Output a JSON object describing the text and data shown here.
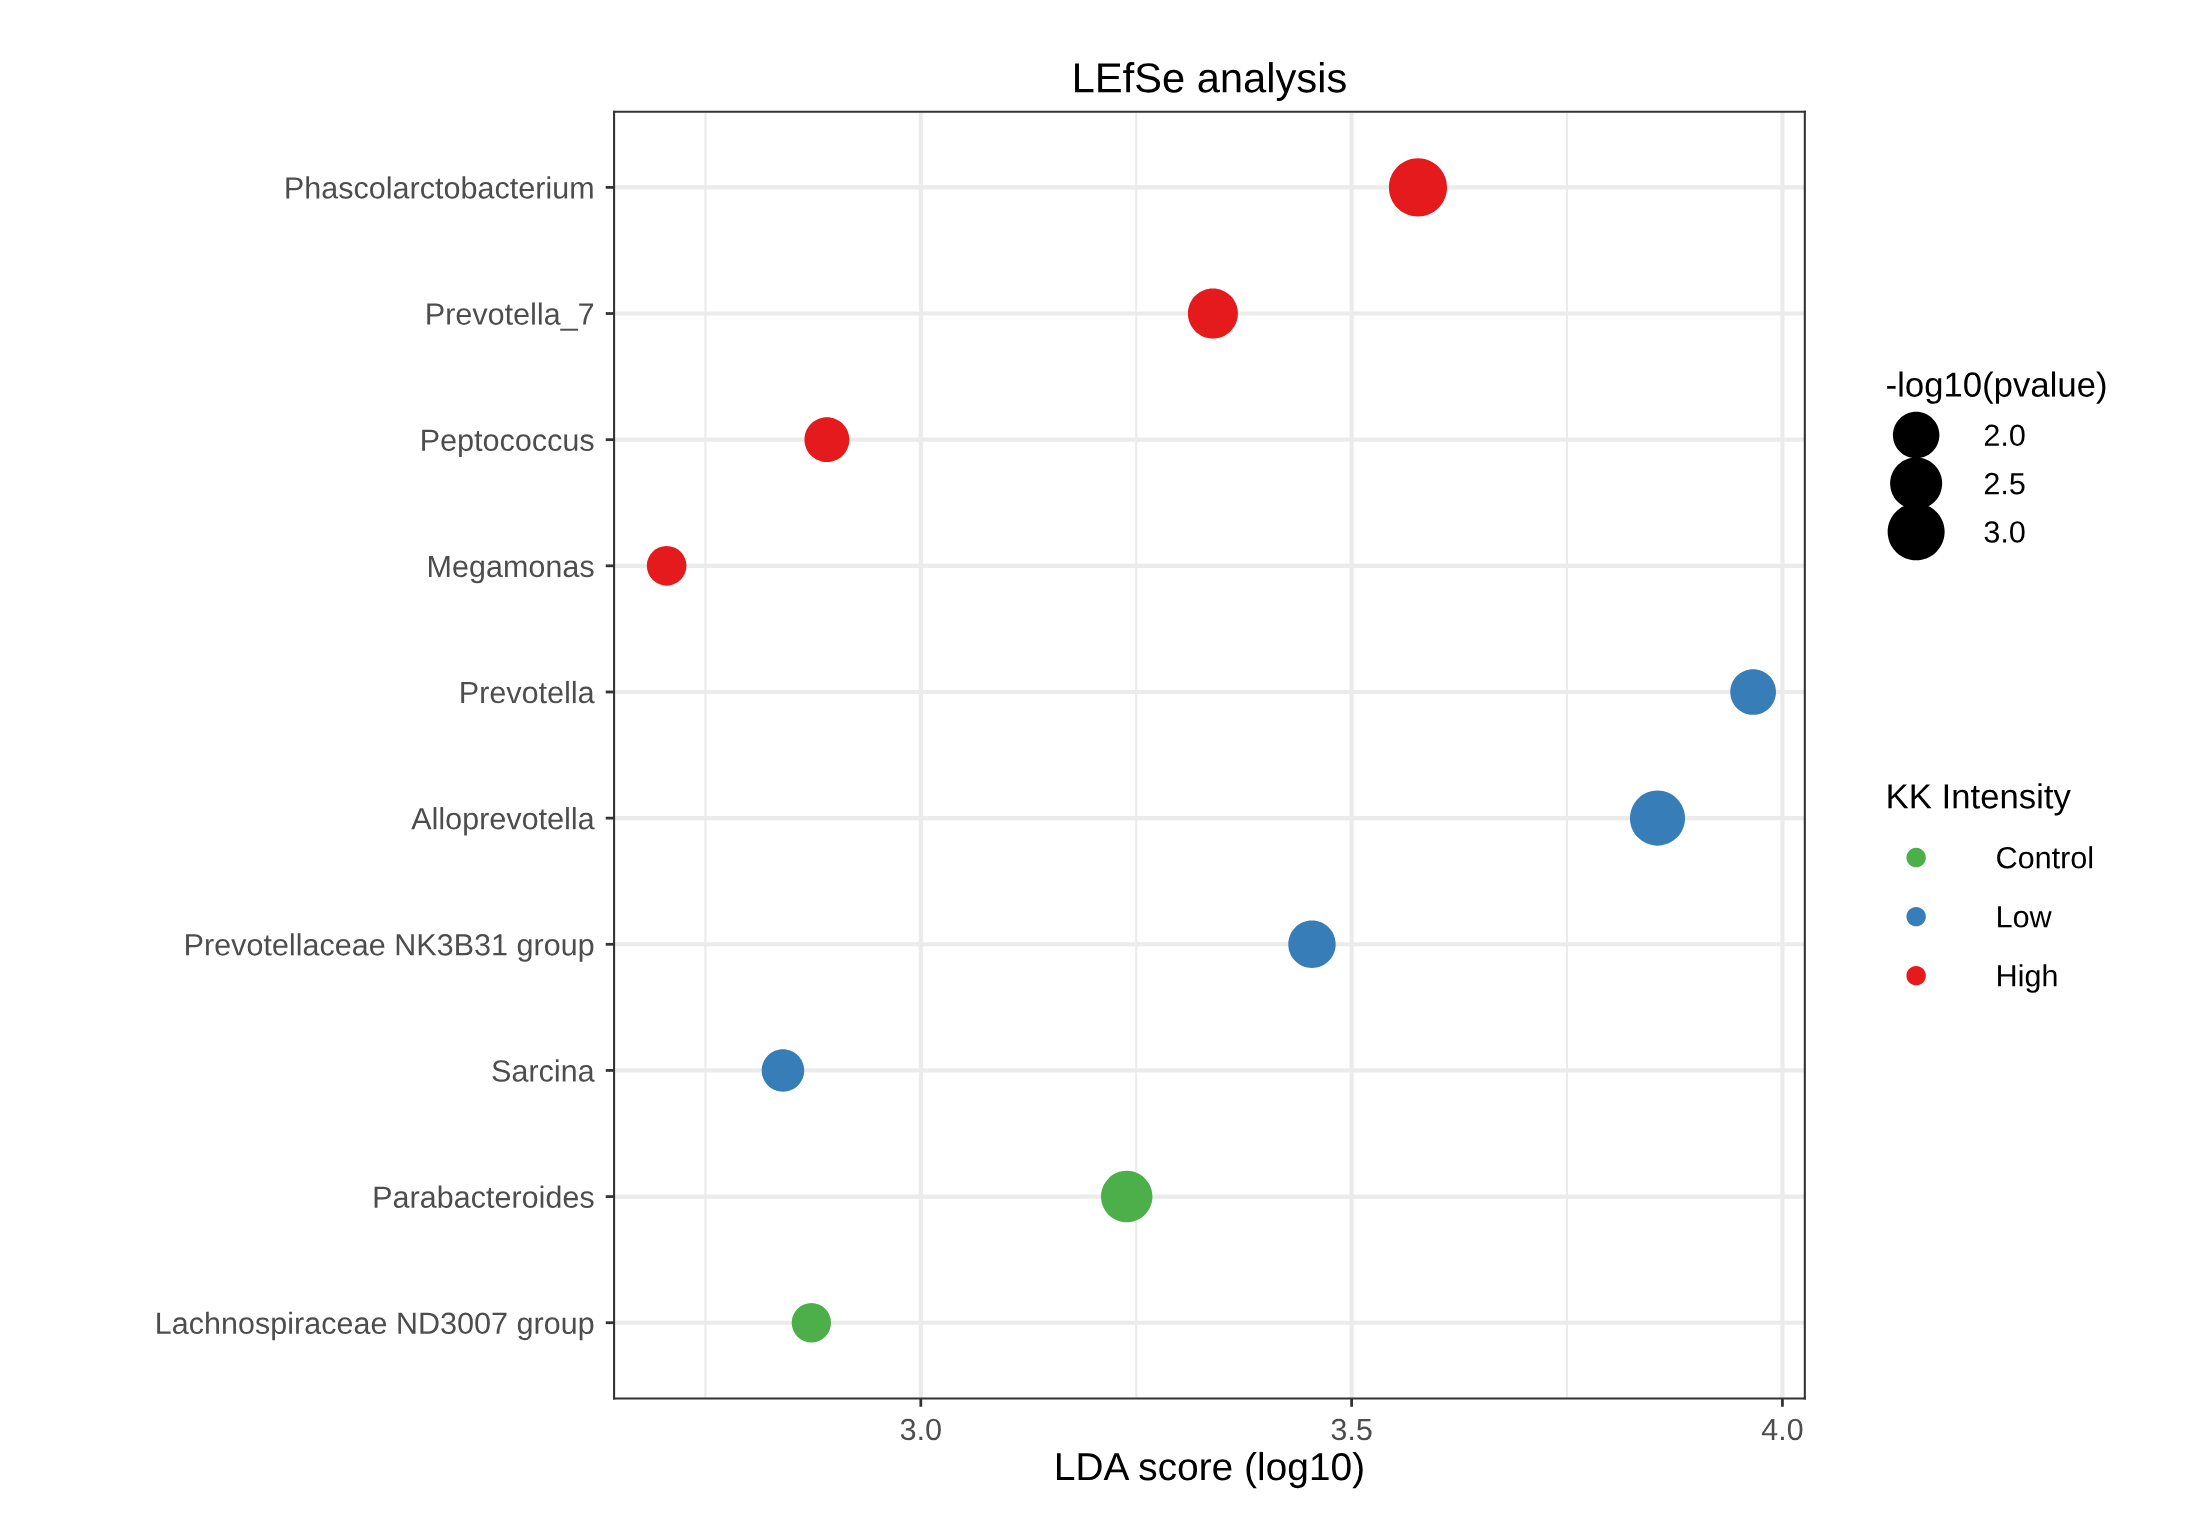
{
  "chart_data": {
    "type": "bubble",
    "orientation": "horizontal",
    "title": "LEfSe analysis",
    "xlabel": "LDA score (log10)",
    "categories": [
      "Phascolarctobacterium",
      "Prevotella_7",
      "Peptococcus",
      "Megamonas",
      "Prevotella",
      "Alloprevotella",
      "Prevotellaceae NK3B31 group",
      "Sarcina",
      "Parabacteroides",
      "Lachnospiraceae ND3007 group"
    ],
    "series": [
      {
        "name": "Control",
        "color": "#4daf4a",
        "values": [
          null,
          null,
          null,
          null,
          null,
          null,
          null,
          null,
          3.239,
          2.873
        ],
        "sizes": [
          null,
          null,
          null,
          null,
          null,
          null,
          null,
          null,
          2.45,
          1.43
        ]
      },
      {
        "name": "Low",
        "color": "#377eb8",
        "values": [
          null,
          null,
          null,
          null,
          3.966,
          3.855,
          3.454,
          2.84,
          null,
          null
        ],
        "sizes": [
          null,
          null,
          null,
          null,
          1.93,
          2.8,
          2.08,
          1.67,
          null,
          null
        ]
      },
      {
        "name": "High",
        "color": "#e41a1c",
        "values": [
          3.577,
          3.339,
          2.891,
          2.705,
          null,
          null,
          null,
          null,
          null,
          null
        ],
        "sizes": [
          3.12,
          2.31,
          1.86,
          1.45,
          null,
          null,
          null,
          null,
          null,
          null
        ]
      }
    ],
    "size_legend": [
      {
        "value": 2.0,
        "label": "2.0"
      },
      {
        "value": 2.5,
        "label": "2.5"
      },
      {
        "value": 3.0,
        "label": "3.0"
      }
    ],
    "legend_title": "KK Intensity",
    "annotations": [
      "-log10(pvalue)"
    ],
    "xlim": [
      2.644,
      4.026
    ],
    "xticks": [
      {
        "value": 3.0,
        "label": "3.0"
      },
      {
        "value": 3.5,
        "label": "3.5"
      },
      {
        "value": 4.0,
        "label": "4.0"
      }
    ],
    "grid": true,
    "legend": "right",
    "marker": "circle"
  }
}
